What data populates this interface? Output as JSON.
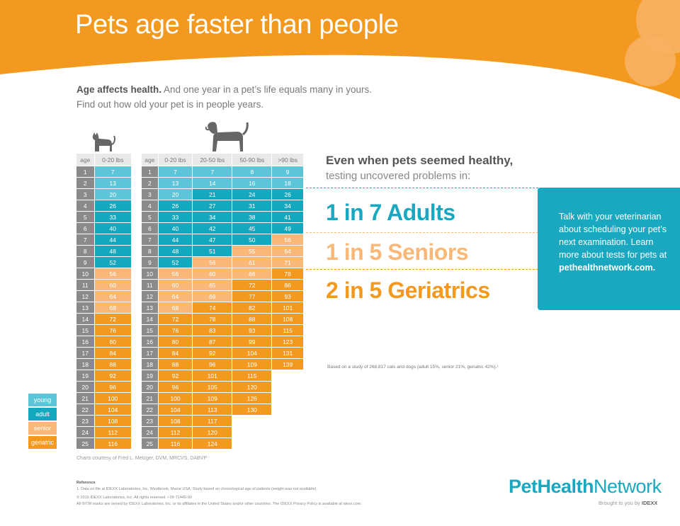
{
  "title": "Pets age faster than people",
  "intro": {
    "bold": "Age affects health.",
    "rest": " And one year in a pet’s life equals many in yours.",
    "line2": "Find out how old your pet is in people years."
  },
  "cat_table": {
    "headers": [
      "age",
      "0-20 lbs"
    ],
    "rows": [
      [
        "1",
        "7",
        "y"
      ],
      [
        "2",
        "13",
        "y"
      ],
      [
        "3",
        "20",
        "y"
      ],
      [
        "4",
        "26",
        "a"
      ],
      [
        "5",
        "33",
        "a"
      ],
      [
        "6",
        "40",
        "a"
      ],
      [
        "7",
        "44",
        "a"
      ],
      [
        "8",
        "48",
        "a"
      ],
      [
        "9",
        "52",
        "a"
      ],
      [
        "10",
        "56",
        "s"
      ],
      [
        "11",
        "60",
        "s"
      ],
      [
        "12",
        "64",
        "s"
      ],
      [
        "13",
        "68",
        "s"
      ],
      [
        "14",
        "72",
        "g"
      ],
      [
        "15",
        "76",
        "g"
      ],
      [
        "16",
        "80",
        "g"
      ],
      [
        "17",
        "84",
        "g"
      ],
      [
        "18",
        "88",
        "g"
      ],
      [
        "19",
        "92",
        "g"
      ],
      [
        "20",
        "96",
        "g"
      ],
      [
        "21",
        "100",
        "g"
      ],
      [
        "22",
        "104",
        "g"
      ],
      [
        "23",
        "108",
        "g"
      ],
      [
        "24",
        "112",
        "g"
      ],
      [
        "25",
        "116",
        "g"
      ]
    ]
  },
  "dog_table": {
    "headers": [
      "age",
      "0-20 lbs",
      "20-50 lbs",
      "50-90 lbs",
      ">90 lbs"
    ],
    "rows": [
      [
        "1",
        [
          "7",
          "y"
        ],
        [
          "7",
          "y"
        ],
        [
          "8",
          "y"
        ],
        [
          "9",
          "y"
        ]
      ],
      [
        "2",
        [
          "13",
          "y"
        ],
        [
          "14",
          "y"
        ],
        [
          "16",
          "y"
        ],
        [
          "18",
          "y"
        ]
      ],
      [
        "3",
        [
          "20",
          "y"
        ],
        [
          "21",
          "a"
        ],
        [
          "24",
          "a"
        ],
        [
          "26",
          "a"
        ]
      ],
      [
        "4",
        [
          "26",
          "a"
        ],
        [
          "27",
          "a"
        ],
        [
          "31",
          "a"
        ],
        [
          "34",
          "a"
        ]
      ],
      [
        "5",
        [
          "33",
          "a"
        ],
        [
          "34",
          "a"
        ],
        [
          "38",
          "a"
        ],
        [
          "41",
          "a"
        ]
      ],
      [
        "6",
        [
          "40",
          "a"
        ],
        [
          "42",
          "a"
        ],
        [
          "45",
          "a"
        ],
        [
          "49",
          "a"
        ]
      ],
      [
        "7",
        [
          "44",
          "a"
        ],
        [
          "47",
          "a"
        ],
        [
          "50",
          "a"
        ],
        [
          "56",
          "s"
        ]
      ],
      [
        "8",
        [
          "48",
          "a"
        ],
        [
          "51",
          "a"
        ],
        [
          "55",
          "s"
        ],
        [
          "64",
          "s"
        ]
      ],
      [
        "9",
        [
          "52",
          "a"
        ],
        [
          "56",
          "s"
        ],
        [
          "61",
          "s"
        ],
        [
          "71",
          "s"
        ]
      ],
      [
        "10",
        [
          "56",
          "s"
        ],
        [
          "60",
          "s"
        ],
        [
          "66",
          "s"
        ],
        [
          "78",
          "g"
        ]
      ],
      [
        "11",
        [
          "60",
          "s"
        ],
        [
          "65",
          "s"
        ],
        [
          "72",
          "g"
        ],
        [
          "86",
          "g"
        ]
      ],
      [
        "12",
        [
          "64",
          "s"
        ],
        [
          "69",
          "s"
        ],
        [
          "77",
          "g"
        ],
        [
          "93",
          "g"
        ]
      ],
      [
        "13",
        [
          "68",
          "s"
        ],
        [
          "74",
          "g"
        ],
        [
          "82",
          "g"
        ],
        [
          "101",
          "g"
        ]
      ],
      [
        "14",
        [
          "72",
          "g"
        ],
        [
          "78",
          "g"
        ],
        [
          "88",
          "g"
        ],
        [
          "108",
          "g"
        ]
      ],
      [
        "15",
        [
          "76",
          "g"
        ],
        [
          "83",
          "g"
        ],
        [
          "93",
          "g"
        ],
        [
          "115",
          "g"
        ]
      ],
      [
        "16",
        [
          "80",
          "g"
        ],
        [
          "87",
          "g"
        ],
        [
          "99",
          "g"
        ],
        [
          "123",
          "g"
        ]
      ],
      [
        "17",
        [
          "84",
          "g"
        ],
        [
          "92",
          "g"
        ],
        [
          "104",
          "g"
        ],
        [
          "131",
          "g"
        ]
      ],
      [
        "18",
        [
          "88",
          "g"
        ],
        [
          "96",
          "g"
        ],
        [
          "109",
          "g"
        ],
        [
          "139",
          "g"
        ]
      ],
      [
        "19",
        [
          "92",
          "g"
        ],
        [
          "101",
          "g"
        ],
        [
          "115",
          "g"
        ],
        [
          "",
          ""
        ]
      ],
      [
        "20",
        [
          "96",
          "g"
        ],
        [
          "105",
          "g"
        ],
        [
          "120",
          "g"
        ],
        [
          "",
          ""
        ]
      ],
      [
        "21",
        [
          "100",
          "g"
        ],
        [
          "109",
          "g"
        ],
        [
          "126",
          "g"
        ],
        [
          "",
          ""
        ]
      ],
      [
        "22",
        [
          "104",
          "g"
        ],
        [
          "113",
          "g"
        ],
        [
          "130",
          "g"
        ],
        [
          "",
          ""
        ]
      ],
      [
        "23",
        [
          "108",
          "g"
        ],
        [
          "117",
          "g"
        ],
        [
          "",
          ""
        ],
        [
          "",
          ""
        ]
      ],
      [
        "24",
        [
          "112",
          "g"
        ],
        [
          "120",
          "g"
        ],
        [
          "",
          ""
        ],
        [
          "",
          ""
        ]
      ],
      [
        "25",
        [
          "116",
          "g"
        ],
        [
          "124",
          "g"
        ],
        [
          "",
          ""
        ],
        [
          "",
          ""
        ]
      ]
    ]
  },
  "legend": [
    {
      "label": "young",
      "color": "#5cc6d8"
    },
    {
      "label": "adult",
      "color": "#13a8bd"
    },
    {
      "label": "senior",
      "color": "#f9b877"
    },
    {
      "label": "geriatric",
      "color": "#f4991f"
    }
  ],
  "credit": "Charts courtesy of Fred L. Metzger, DVM, MRCVS, DABVP",
  "stats": {
    "head1": "Even when pets seemed healthy,",
    "head2": "testing uncovered problems in:",
    "adults": "1 in 7 Adults",
    "seniors": "1 in 5 Seniors",
    "geriatrics": "2 in 5 Geriatrics",
    "note": "Based on a study of 268,817 cats and dogs (adult 15%, senior 21%, geriatric 42%).¹"
  },
  "cta": {
    "text": "Talk with your veterinarian about scheduling your pet’s next examination. Learn more about tests for pets at",
    "url": "pethealthnetwork.com."
  },
  "reference": {
    "title": "Reference",
    "line1": "1. Data on file at IDEXX Laboratories, Inc. Westbrook, Maine USA. Study based on chronological age of patients (weight was not available).",
    "line2": "© 2016 IDEXX Laboratories, Inc. All rights reserved. • 09-71440-00",
    "line3": "All ®/TM marks are owned by IDEXX Laboratories, Inc. or its affiliates in the United States and/or other countries. The IDEXX Privacy Policy is available at idexx.com."
  },
  "logo": {
    "bold": "PetHealth",
    "regular": "Network",
    "brought": "Brought to you by",
    "brand": "IDEXX"
  },
  "colors": {
    "orange": "#f4991f",
    "teal": "#19a8bf",
    "light_orange": "#f9b877",
    "light_teal": "#5cc6d8"
  }
}
